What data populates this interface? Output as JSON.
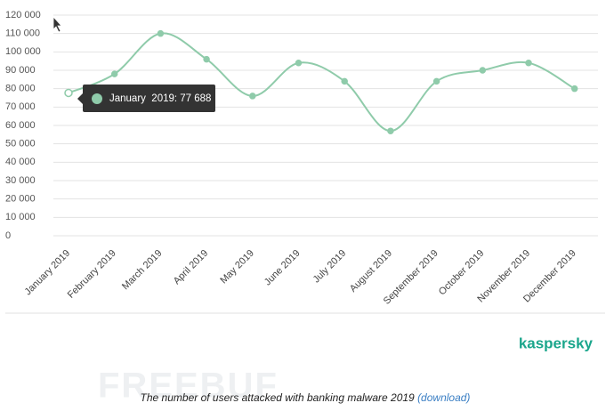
{
  "chart_data": {
    "type": "line",
    "categories": [
      "January 2019",
      "February 2019",
      "March 2019",
      "April 2019",
      "May 2019",
      "June 2019",
      "July 2019",
      "August 2019",
      "September 2019",
      "October 2019",
      "November 2019",
      "December 2019"
    ],
    "series": [
      {
        "name": "Users attacked",
        "color": "#8fcbaa",
        "values": [
          77688,
          88000,
          110000,
          96000,
          76000,
          94000,
          84000,
          57000,
          84000,
          90000,
          94000,
          80000
        ]
      }
    ],
    "ylim": [
      0,
      120000
    ],
    "yticks": [
      0,
      {
        "value": 10000,
        "label": "10 000"
      },
      {
        "value": 20000,
        "label": "20 000"
      },
      {
        "value": 30000,
        "label": "30 000"
      },
      {
        "value": 40000,
        "label": "40 000"
      },
      {
        "value": 50000,
        "label": "50 000"
      },
      {
        "value": 60000,
        "label": "60 000"
      },
      {
        "value": 70000,
        "label": "70 000"
      },
      {
        "value": 80000,
        "label": "80 000"
      },
      {
        "value": 90000,
        "label": "90 000"
      },
      {
        "value": 100000,
        "label": "100 000"
      },
      {
        "value": 110000,
        "label": "110 000"
      },
      {
        "value": 120000,
        "label": "120 000"
      }
    ],
    "grid": true,
    "tooltip": "January  2019: 77 688",
    "caption": "The number of users attacked with banking malware 2019",
    "download": "(download)",
    "logo": "kaspersky",
    "watermark": "FREEBUF"
  }
}
